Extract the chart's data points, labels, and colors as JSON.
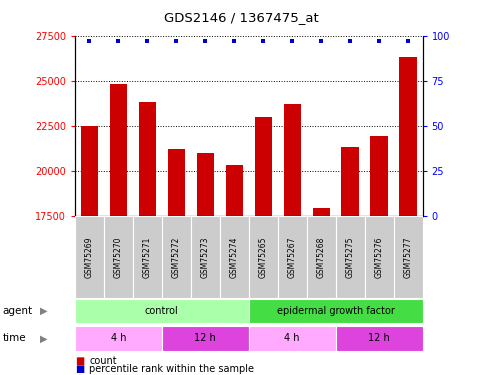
{
  "title": "GDS2146 / 1367475_at",
  "samples": [
    "GSM75269",
    "GSM75270",
    "GSM75271",
    "GSM75272",
    "GSM75273",
    "GSM75274",
    "GSM75265",
    "GSM75267",
    "GSM75268",
    "GSM75275",
    "GSM75276",
    "GSM75277"
  ],
  "counts": [
    22500,
    24800,
    23800,
    21200,
    21000,
    20300,
    23000,
    23700,
    17900,
    21300,
    21900,
    26300
  ],
  "percentiles": [
    97,
    97,
    97,
    97,
    97,
    97,
    97,
    97,
    97,
    97,
    97,
    97
  ],
  "ylim_left": [
    17500,
    27500
  ],
  "ylim_right": [
    0,
    100
  ],
  "yticks_left": [
    17500,
    20000,
    22500,
    25000,
    27500
  ],
  "yticks_right": [
    0,
    25,
    50,
    75,
    100
  ],
  "bar_color": "#cc0000",
  "dot_color": "#0000cc",
  "sample_bg_color": "#cccccc",
  "agent_labels": [
    {
      "label": "control",
      "start": 0,
      "end": 6,
      "color": "#aaffaa"
    },
    {
      "label": "epidermal growth factor",
      "start": 6,
      "end": 12,
      "color": "#44dd44"
    }
  ],
  "time_labels": [
    {
      "label": "4 h",
      "start": 0,
      "end": 3,
      "color": "#ffaaff"
    },
    {
      "label": "12 h",
      "start": 3,
      "end": 6,
      "color": "#dd44dd"
    },
    {
      "label": "4 h",
      "start": 6,
      "end": 9,
      "color": "#ffaaff"
    },
    {
      "label": "12 h",
      "start": 9,
      "end": 12,
      "color": "#dd44dd"
    }
  ],
  "legend_count_color": "#cc0000",
  "legend_pct_color": "#0000cc"
}
